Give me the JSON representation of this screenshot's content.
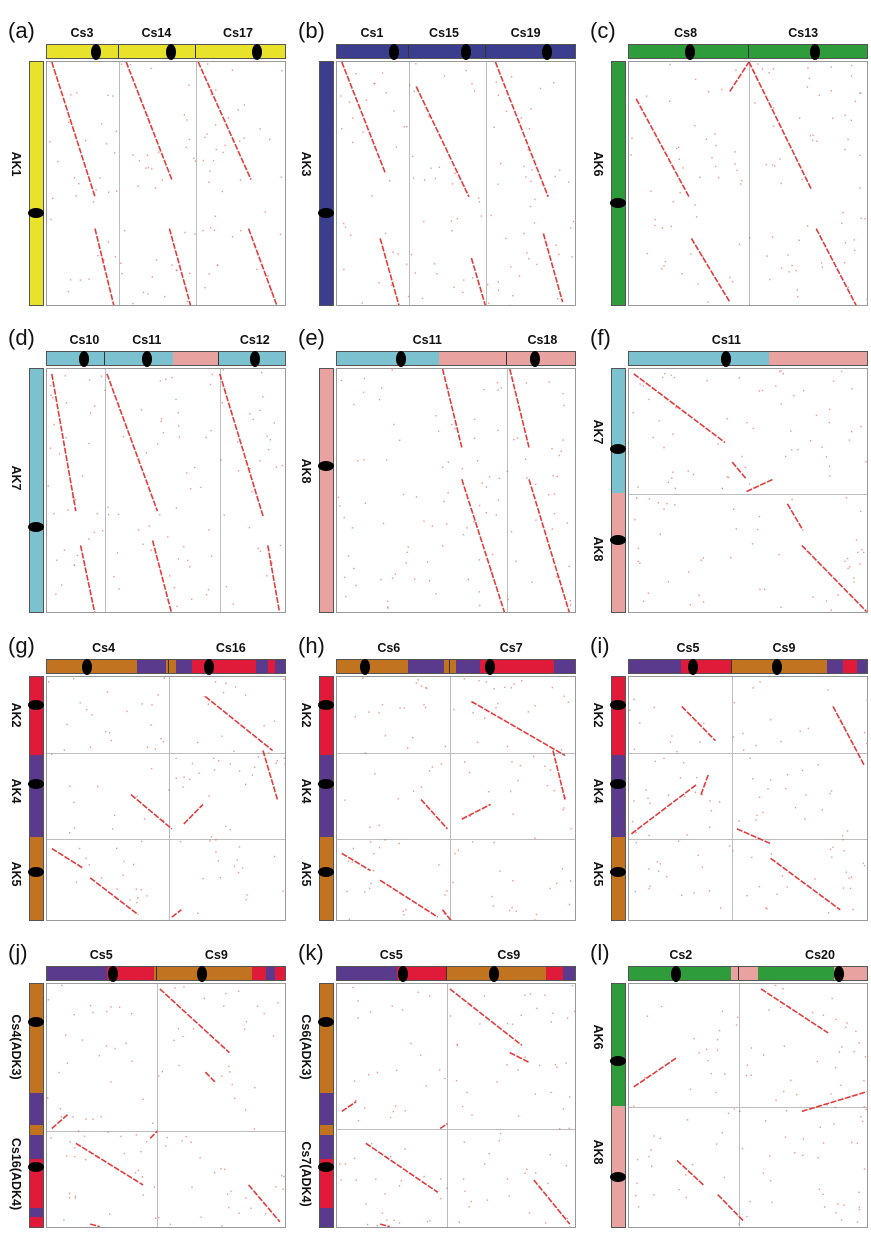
{
  "colors": {
    "yellow": "#e8e32a",
    "blue": "#3b3e8e",
    "green": "#2e9c3b",
    "cyan": "#7bc1cf",
    "pink": "#e8a3a1",
    "orange": "#c1731f",
    "purple": "#5a3a8c",
    "red": "#e01b3a",
    "dots": "#e33b3b"
  },
  "panels": [
    {
      "letter": "(a)",
      "top": [
        "Cs3",
        "Cs14",
        "Cs17"
      ],
      "left": [
        "AK1"
      ]
    },
    {
      "letter": "(b)",
      "top": [
        "Cs1",
        "Cs15",
        "Cs19"
      ],
      "left": [
        "AK3"
      ]
    },
    {
      "letter": "(c)",
      "top": [
        "Cs8",
        "Cs13"
      ],
      "left": [
        "AK6"
      ]
    },
    {
      "letter": "(d)",
      "top": [
        "Cs10",
        "Cs11",
        "Cs12"
      ],
      "left": [
        "AK7"
      ]
    },
    {
      "letter": "(e)",
      "top": [
        "Cs11",
        "Cs18"
      ],
      "left": [
        "AK8"
      ]
    },
    {
      "letter": "(f)",
      "top": [
        "Cs11"
      ],
      "left": [
        "AK7",
        "AK8"
      ]
    },
    {
      "letter": "(g)",
      "top": [
        "Cs4",
        "Cs16"
      ],
      "left": [
        "AK2",
        "AK4",
        "AK5"
      ]
    },
    {
      "letter": "(h)",
      "top": [
        "Cs6",
        "Cs7"
      ],
      "left": [
        "AK2",
        "AK4",
        "AK5"
      ]
    },
    {
      "letter": "(i)",
      "top": [
        "Cs5",
        "Cs9"
      ],
      "left": [
        "AK2",
        "AK4",
        "AK5"
      ]
    },
    {
      "letter": "(j)",
      "top": [
        "Cs5",
        "Cs9"
      ],
      "left": [
        "Cs4(ADK3)",
        "Cs16(ADK4)"
      ]
    },
    {
      "letter": "(k)",
      "top": [
        "Cs5",
        "Cs9"
      ],
      "left": [
        "Cs6(ADK3)",
        "Cs7(ADK4)"
      ]
    },
    {
      "letter": "(l)",
      "top": [
        "Cs2",
        "Cs20"
      ],
      "left": [
        "AK6",
        "AK8"
      ]
    }
  ]
}
